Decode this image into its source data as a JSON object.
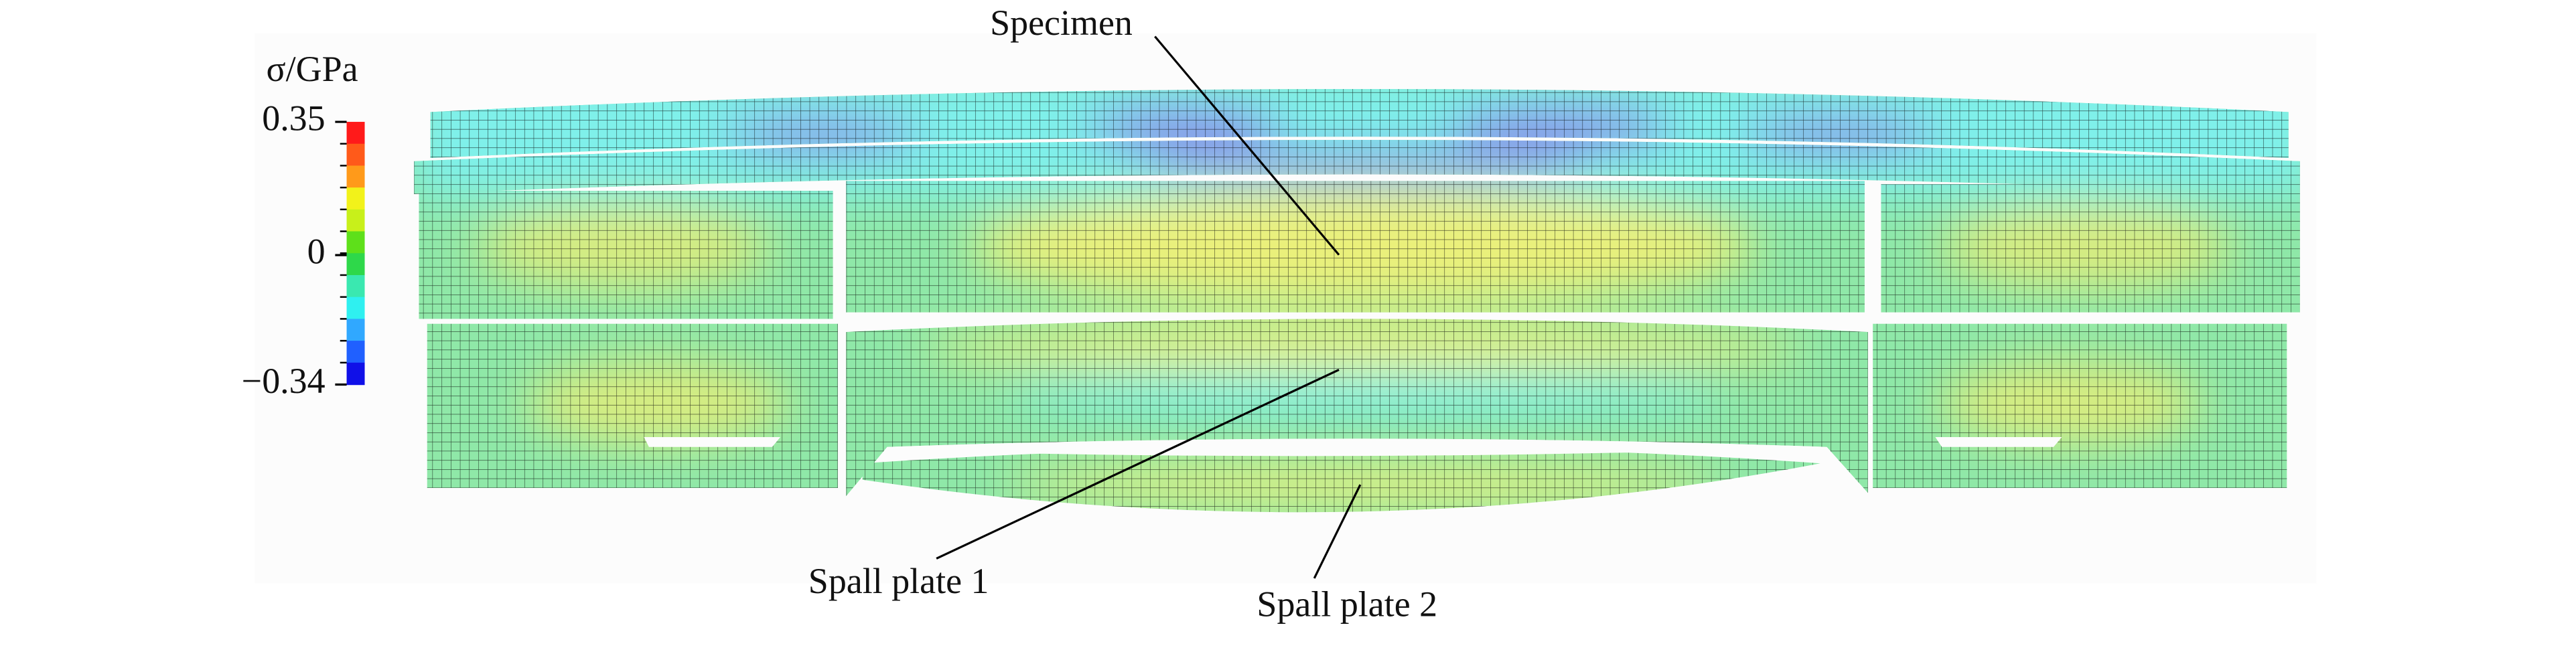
{
  "colorbar": {
    "title": "σ/GPa",
    "ticks": [
      {
        "value": 0.35,
        "label": "0.35"
      },
      0,
      {
        "value": -0.34,
        "label": "−0.34"
      }
    ],
    "colors": [
      "#ff1a1a",
      "#ff5a1a",
      "#ff9a1a",
      "#f2f21a",
      "#c8f01a",
      "#5ee01a",
      "#2ed84a",
      "#3ae8b0",
      "#2ff0f0",
      "#30a8ff",
      "#2060ff",
      "#1010e8"
    ]
  },
  "labels": {
    "specimen": "Specimen",
    "spall_plate_1": "Spall plate 1",
    "spall_plate_2": "Spall plate 2"
  }
}
